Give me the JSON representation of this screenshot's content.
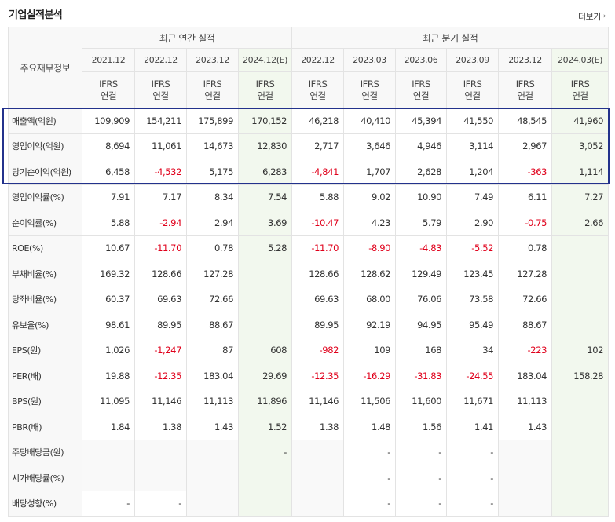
{
  "header": {
    "title": "기업실적분석",
    "more_label": "더보기",
    "more_icon": "chevron-right-icon"
  },
  "table": {
    "corner_label": "주요재무정보",
    "group_annual": "최근 연간 실적",
    "group_quarter": "최근 분기 실적",
    "periods": [
      "2021.12",
      "2022.12",
      "2023.12",
      "2024.12(E)",
      "2022.12",
      "2023.03",
      "2023.06",
      "2023.09",
      "2023.12",
      "2024.03(E)"
    ],
    "ifrs_top": "IFRS",
    "ifrs_bottom": "연결",
    "rows": [
      {
        "label": "매출액(억원)",
        "values": [
          "109,909",
          "154,211",
          "175,899",
          "170,152",
          "46,218",
          "40,410",
          "45,394",
          "41,550",
          "48,545",
          "41,960"
        ]
      },
      {
        "label": "영업이익(억원)",
        "values": [
          "8,694",
          "11,061",
          "14,673",
          "12,830",
          "2,717",
          "3,646",
          "4,946",
          "3,114",
          "2,967",
          "3,052"
        ]
      },
      {
        "label": "당기순이익(억원)",
        "values": [
          "6,458",
          "-4,532",
          "5,175",
          "6,283",
          "-4,841",
          "1,707",
          "2,628",
          "1,204",
          "-363",
          "1,114"
        ]
      },
      {
        "label": "영업이익률(%)",
        "values": [
          "7.91",
          "7.17",
          "8.34",
          "7.54",
          "5.88",
          "9.02",
          "10.90",
          "7.49",
          "6.11",
          "7.27"
        ]
      },
      {
        "label": "순이익률(%)",
        "values": [
          "5.88",
          "-2.94",
          "2.94",
          "3.69",
          "-10.47",
          "4.23",
          "5.79",
          "2.90",
          "-0.75",
          "2.66"
        ]
      },
      {
        "label": "ROE(%)",
        "values": [
          "10.67",
          "-11.70",
          "0.78",
          "5.28",
          "-11.70",
          "-8.90",
          "-4.83",
          "-5.52",
          "0.78",
          ""
        ]
      },
      {
        "label": "부채비율(%)",
        "values": [
          "169.32",
          "128.66",
          "127.28",
          "",
          "128.66",
          "128.62",
          "129.49",
          "123.45",
          "127.28",
          ""
        ]
      },
      {
        "label": "당좌비율(%)",
        "values": [
          "60.37",
          "69.63",
          "72.66",
          "",
          "69.63",
          "68.00",
          "76.06",
          "73.58",
          "72.66",
          ""
        ]
      },
      {
        "label": "유보율(%)",
        "values": [
          "98.61",
          "89.95",
          "88.67",
          "",
          "89.95",
          "92.19",
          "94.95",
          "95.49",
          "88.67",
          ""
        ]
      },
      {
        "label": "EPS(원)",
        "values": [
          "1,026",
          "-1,247",
          "87",
          "608",
          "-982",
          "109",
          "168",
          "34",
          "-223",
          "102"
        ]
      },
      {
        "label": "PER(배)",
        "values": [
          "19.88",
          "-12.35",
          "183.04",
          "29.69",
          "-12.35",
          "-16.29",
          "-31.83",
          "-24.55",
          "183.04",
          "158.28"
        ]
      },
      {
        "label": "BPS(원)",
        "values": [
          "11,095",
          "11,146",
          "11,113",
          "11,896",
          "11,146",
          "11,506",
          "11,600",
          "11,671",
          "11,113",
          ""
        ]
      },
      {
        "label": "PBR(배)",
        "values": [
          "1.84",
          "1.38",
          "1.43",
          "1.52",
          "1.38",
          "1.48",
          "1.56",
          "1.41",
          "1.43",
          ""
        ]
      },
      {
        "label": "주당배당금(원)",
        "values": [
          "",
          "",
          "",
          "-",
          "",
          "-",
          "-",
          "-",
          "",
          ""
        ]
      },
      {
        "label": "시가배당률(%)",
        "values": [
          "",
          "",
          "",
          "",
          "",
          "-",
          "-",
          "-",
          "",
          ""
        ]
      },
      {
        "label": "배당성향(%)",
        "values": [
          "-",
          "-",
          "",
          "",
          "",
          "-",
          "-",
          "-",
          "",
          ""
        ]
      }
    ]
  },
  "colors": {
    "negative": "#e0001b",
    "ifrs": "#e45c00",
    "estimate_bg": "#f2f8ee",
    "highlight_border": "#23328c"
  }
}
